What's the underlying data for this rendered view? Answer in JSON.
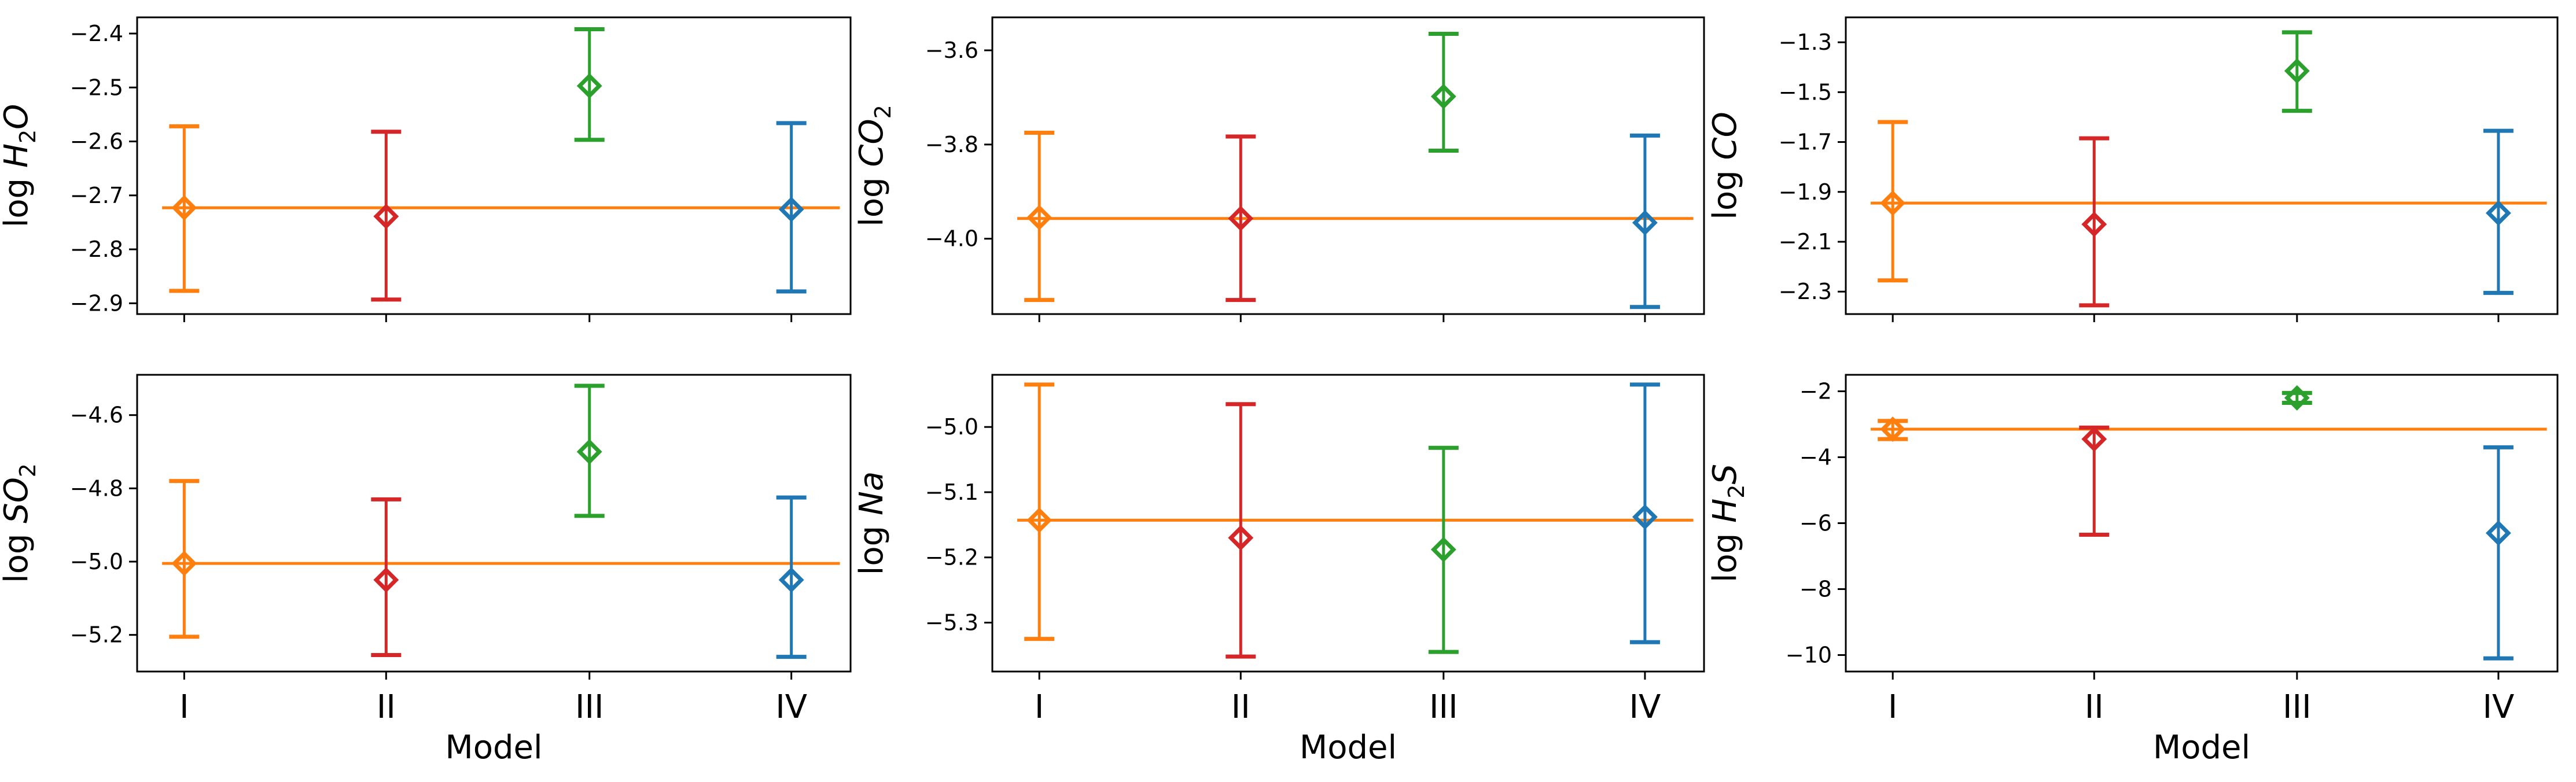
{
  "chart_data": [
    {
      "type": "errorbar",
      "ylabel": "log H2O",
      "ylabel_parts": [
        "log ",
        "H",
        "2",
        "O"
      ],
      "categories": [
        "I",
        "II",
        "III",
        "IV"
      ],
      "xlabel": "",
      "show_xticklabels": false,
      "ylim": [
        -2.92,
        -2.37
      ],
      "yticks": [
        "-2.4",
        "-2.5",
        "-2.6",
        "-2.7",
        "-2.8",
        "-2.9"
      ],
      "reference_line": -2.723,
      "points": [
        {
          "model": "I",
          "value": -2.723,
          "lower": -2.877,
          "upper": -2.572,
          "color": "#ff7f0e"
        },
        {
          "model": "II",
          "value": -2.739,
          "lower": -2.893,
          "upper": -2.582,
          "color": "#d62728"
        },
        {
          "model": "III",
          "value": -2.497,
          "lower": -2.597,
          "upper": -2.392,
          "color": "#2ca02c"
        },
        {
          "model": "IV",
          "value": -2.726,
          "lower": -2.878,
          "upper": -2.566,
          "color": "#1f77b4"
        }
      ]
    },
    {
      "type": "errorbar",
      "ylabel": "log CO2",
      "ylabel_parts": [
        "log ",
        "CO",
        "2",
        ""
      ],
      "categories": [
        "I",
        "II",
        "III",
        "IV"
      ],
      "xlabel": "",
      "show_xticklabels": false,
      "ylim": [
        -4.16,
        -3.53
      ],
      "yticks": [
        "-3.6",
        "-3.8",
        "-4.0"
      ],
      "reference_line": -3.957,
      "points": [
        {
          "model": "I",
          "value": -3.955,
          "lower": -4.13,
          "upper": -3.775,
          "color": "#ff7f0e"
        },
        {
          "model": "II",
          "value": -3.957,
          "lower": -4.13,
          "upper": -3.783,
          "color": "#d62728"
        },
        {
          "model": "III",
          "value": -3.698,
          "lower": -3.813,
          "upper": -3.565,
          "color": "#2ca02c"
        },
        {
          "model": "IV",
          "value": -3.966,
          "lower": -4.145,
          "upper": -3.781,
          "color": "#1f77b4"
        }
      ]
    },
    {
      "type": "errorbar",
      "ylabel": "log CO",
      "ylabel_parts": [
        "log ",
        "CO",
        "",
        ""
      ],
      "categories": [
        "I",
        "II",
        "III",
        "IV"
      ],
      "xlabel": "",
      "show_xticklabels": false,
      "ylim": [
        -2.39,
        -1.2
      ],
      "yticks": [
        "-1.3",
        "-1.5",
        "-1.7",
        "-1.9",
        "-2.1",
        "-2.3"
      ],
      "reference_line": -1.945,
      "points": [
        {
          "model": "I",
          "value": -1.945,
          "lower": -2.255,
          "upper": -1.62,
          "color": "#ff7f0e"
        },
        {
          "model": "II",
          "value": -2.03,
          "lower": -2.355,
          "upper": -1.685,
          "color": "#d62728"
        },
        {
          "model": "III",
          "value": -1.415,
          "lower": -1.575,
          "upper": -1.26,
          "color": "#2ca02c"
        },
        {
          "model": "IV",
          "value": -1.985,
          "lower": -2.305,
          "upper": -1.655,
          "color": "#1f77b4"
        }
      ]
    },
    {
      "type": "errorbar",
      "ylabel": "log SO2",
      "ylabel_parts": [
        "log ",
        "SO",
        "2",
        ""
      ],
      "categories": [
        "I",
        "II",
        "III",
        "IV"
      ],
      "xlabel": "Model",
      "show_xticklabels": true,
      "ylim": [
        -5.3,
        -4.49
      ],
      "yticks": [
        "-4.6",
        "-4.8",
        "-5.0",
        "-5.2"
      ],
      "reference_line": -5.005,
      "points": [
        {
          "model": "I",
          "value": -5.005,
          "lower": -5.205,
          "upper": -4.78,
          "color": "#ff7f0e"
        },
        {
          "model": "II",
          "value": -5.05,
          "lower": -5.255,
          "upper": -4.83,
          "color": "#d62728"
        },
        {
          "model": "III",
          "value": -4.7,
          "lower": -4.875,
          "upper": -4.52,
          "color": "#2ca02c"
        },
        {
          "model": "IV",
          "value": -5.05,
          "lower": -5.26,
          "upper": -4.825,
          "color": "#1f77b4"
        }
      ]
    },
    {
      "type": "errorbar",
      "ylabel": "log Na",
      "ylabel_parts": [
        "log ",
        "Na",
        "",
        ""
      ],
      "categories": [
        "I",
        "II",
        "III",
        "IV"
      ],
      "xlabel": "Model",
      "show_xticklabels": true,
      "ylim": [
        -5.375,
        -4.92
      ],
      "yticks": [
        "-5.0",
        "-5.1",
        "-5.2",
        "-5.3"
      ],
      "reference_line": -5.143,
      "points": [
        {
          "model": "I",
          "value": -5.143,
          "lower": -5.325,
          "upper": -4.935,
          "color": "#ff7f0e"
        },
        {
          "model": "II",
          "value": -5.17,
          "lower": -5.352,
          "upper": -4.965,
          "color": "#d62728"
        },
        {
          "model": "III",
          "value": -5.188,
          "lower": -5.345,
          "upper": -5.032,
          "color": "#2ca02c"
        },
        {
          "model": "IV",
          "value": -5.138,
          "lower": -5.33,
          "upper": -4.935,
          "color": "#1f77b4"
        }
      ]
    },
    {
      "type": "errorbar",
      "ylabel": "log H2S",
      "ylabel_parts": [
        "log ",
        "H",
        "2",
        "S"
      ],
      "categories": [
        "I",
        "II",
        "III",
        "IV"
      ],
      "xlabel": "Model",
      "show_xticklabels": true,
      "ylim": [
        -10.5,
        -1.5
      ],
      "yticks": [
        "-2",
        "-4",
        "-6",
        "-8",
        "-10"
      ],
      "reference_line": -3.15,
      "points": [
        {
          "model": "I",
          "value": -3.15,
          "lower": -3.45,
          "upper": -2.9,
          "color": "#ff7f0e"
        },
        {
          "model": "II",
          "value": -3.45,
          "lower": -6.35,
          "upper": -3.1,
          "color": "#d62728"
        },
        {
          "model": "III",
          "value": -2.2,
          "lower": -2.35,
          "upper": -2.05,
          "color": "#2ca02c"
        },
        {
          "model": "IV",
          "value": -6.3,
          "lower": -10.1,
          "upper": -3.7,
          "color": "#1f77b4"
        }
      ]
    }
  ],
  "reference_line_color": "#ff7f0e"
}
